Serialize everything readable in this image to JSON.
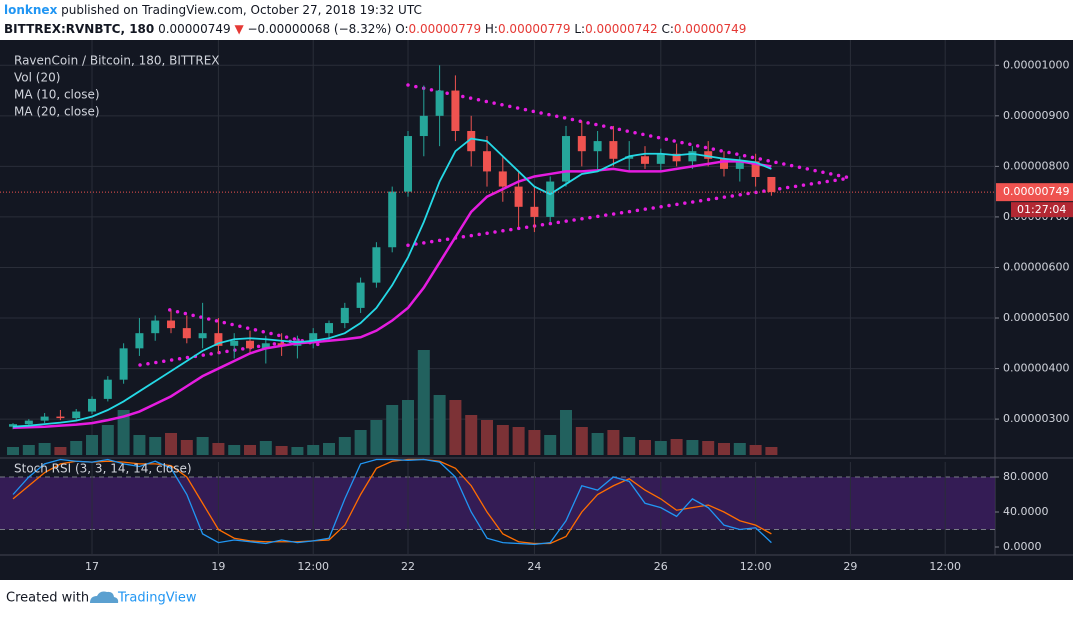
{
  "header": {
    "author": "lonknex",
    "published": " published on TradingView.com, October 27, 2018 19:32 UTC",
    "symbol": "BITTREX:RVNBTC, 180",
    "price": "0.00000749",
    "arrow": "▼",
    "change": "−0.00000068 (−8.32%)",
    "ohlc": [
      {
        "label": "O:",
        "value": "0.00000779"
      },
      {
        "label": "H:",
        "value": "0.00000779"
      },
      {
        "label": "L:",
        "value": "0.00000742"
      },
      {
        "label": "C:",
        "value": "0.00000749"
      }
    ]
  },
  "footer": {
    "created": "Created with",
    "brand": "TradingView"
  },
  "chart_data": {
    "type": "candlestick",
    "title": "RavenCoin / Bitcoin, 180, BITTREX",
    "volume_label": "Vol (20)",
    "ma10_label": "MA (10, close)",
    "ma20_label": "MA (20, close)",
    "stoch_label": "Stoch RSI (3, 3, 14, 14, close)",
    "up_color": "#26a69a",
    "down_color": "#ef5350",
    "volume_up_color": "#22615e",
    "volume_down_color": "#7c3236",
    "ma10_color": "#25d9e6",
    "ma20_color": "#e51ce0",
    "trendline_color": "#e51ce0",
    "grid": true,
    "x": [
      15.75,
      16,
      16.25,
      16.5,
      16.75,
      17,
      17.25,
      17.5,
      17.75,
      18,
      18.25,
      18.5,
      18.75,
      19,
      19.25,
      19.5,
      19.75,
      20,
      20.25,
      20.5,
      20.75,
      21,
      21.25,
      21.5,
      21.75,
      22,
      22.25,
      22.5,
      22.75,
      23,
      23.25,
      23.5,
      23.75,
      24,
      24.25,
      24.5,
      24.75,
      25,
      25.25,
      25.5,
      25.75,
      26,
      26.25,
      26.5,
      26.75,
      27,
      27.25,
      27.5,
      27.75
    ],
    "open": [
      2.85e-06,
      2.9e-06,
      2.97e-06,
      3.05e-06,
      3.02e-06,
      3.15e-06,
      3.4e-06,
      3.78e-06,
      4.4e-06,
      4.7e-06,
      4.95e-06,
      4.8e-06,
      4.6e-06,
      4.7e-06,
      4.45e-06,
      4.55e-06,
      4.4e-06,
      4.5e-06,
      4.45e-06,
      4.55e-06,
      4.7e-06,
      4.9e-06,
      5.2e-06,
      5.7e-06,
      6.4e-06,
      7.5e-06,
      8.6e-06,
      9e-06,
      9.5e-06,
      8.7e-06,
      8.3e-06,
      7.9e-06,
      7.6e-06,
      7.2e-06,
      7e-06,
      7.7e-06,
      8.6e-06,
      8.3e-06,
      8.5e-06,
      8.15e-06,
      8.2e-06,
      8.05e-06,
      8.25e-06,
      8.1e-06,
      8.3e-06,
      8.15e-06,
      7.95e-06,
      8.1e-06,
      7.79e-06
    ],
    "high": [
      2.92e-06,
      3e-06,
      3.12e-06,
      3.18e-06,
      3.2e-06,
      3.45e-06,
      3.85e-06,
      4.5e-06,
      5e-06,
      5.05e-06,
      5.15e-06,
      5.05e-06,
      5.3e-06,
      5e-06,
      4.7e-06,
      4.75e-06,
      4.65e-06,
      4.7e-06,
      4.65e-06,
      4.8e-06,
      4.95e-06,
      5.3e-06,
      5.8e-06,
      6.5e-06,
      7.6e-06,
      8.7e-06,
      9.6e-06,
      1e-05,
      9.8e-06,
      9e-06,
      8.6e-06,
      8.2e-06,
      7.9e-06,
      7.6e-06,
      7.8e-06,
      8.8e-06,
      8.9e-06,
      8.7e-06,
      8.8e-06,
      8.5e-06,
      8.4e-06,
      8.35e-06,
      8.45e-06,
      8.4e-06,
      8.5e-06,
      8.3e-06,
      8.2e-06,
      8.25e-06,
      7.79e-06
    ],
    "low": [
      2.8e-06,
      2.85e-06,
      2.92e-06,
      2.98e-06,
      2.96e-06,
      3.1e-06,
      3.35e-06,
      3.7e-06,
      4.25e-06,
      4.55e-06,
      4.7e-06,
      4.5e-06,
      4.4e-06,
      4.3e-06,
      4.2e-06,
      4.3e-06,
      4.1e-06,
      4.25e-06,
      4.2e-06,
      4.4e-06,
      4.55e-06,
      4.8e-06,
      5.1e-06,
      5.6e-06,
      6.3e-06,
      7.4e-06,
      8.2e-06,
      8.4e-06,
      8.5e-06,
      8e-06,
      7.6e-06,
      7.3e-06,
      6.8e-06,
      6.7e-06,
      6.9e-06,
      7.6e-06,
      8e-06,
      7.9e-06,
      8e-06,
      7.9e-06,
      7.95e-06,
      7.9e-06,
      8e-06,
      7.95e-06,
      8e-06,
      7.8e-06,
      7.7e-06,
      7.6e-06,
      7.42e-06
    ],
    "close": [
      2.9e-06,
      2.97e-06,
      3.05e-06,
      3.02e-06,
      3.15e-06,
      3.4e-06,
      3.78e-06,
      4.4e-06,
      4.7e-06,
      4.95e-06,
      4.8e-06,
      4.6e-06,
      4.7e-06,
      4.45e-06,
      4.55e-06,
      4.4e-06,
      4.5e-06,
      4.45e-06,
      4.55e-06,
      4.7e-06,
      4.9e-06,
      5.2e-06,
      5.7e-06,
      6.4e-06,
      7.5e-06,
      8.6e-06,
      9e-06,
      9.5e-06,
      8.7e-06,
      8.3e-06,
      7.9e-06,
      7.6e-06,
      7.2e-06,
      7e-06,
      7.7e-06,
      8.6e-06,
      8.3e-06,
      8.5e-06,
      8.15e-06,
      8.2e-06,
      8.05e-06,
      8.25e-06,
      8.1e-06,
      8.3e-06,
      8.15e-06,
      7.95e-06,
      8.1e-06,
      7.79e-06,
      7.49e-06
    ],
    "volume": [
      8,
      10,
      12,
      8,
      14,
      20,
      30,
      45,
      20,
      18,
      22,
      15,
      18,
      12,
      10,
      10,
      14,
      9,
      8,
      10,
      12,
      18,
      25,
      35,
      50,
      55,
      105,
      60,
      55,
      40,
      35,
      30,
      28,
      25,
      20,
      45,
      28,
      22,
      25,
      18,
      15,
      14,
      16,
      15,
      14,
      12,
      12,
      10,
      8
    ],
    "ma10": [
      2.85e-06,
      2.87e-06,
      2.9e-06,
      2.93e-06,
      2.97e-06,
      3.05e-06,
      3.18e-06,
      3.35e-06,
      3.55e-06,
      3.75e-06,
      3.95e-06,
      4.15e-06,
      4.35e-06,
      4.5e-06,
      4.58e-06,
      4.6e-06,
      4.58e-06,
      4.55e-06,
      4.52e-06,
      4.55e-06,
      4.6e-06,
      4.7e-06,
      4.9e-06,
      5.2e-06,
      5.65e-06,
      6.2e-06,
      6.9e-06,
      7.7e-06,
      8.3e-06,
      8.55e-06,
      8.5e-06,
      8.2e-06,
      7.9e-06,
      7.6e-06,
      7.45e-06,
      7.65e-06,
      7.85e-06,
      7.9e-06,
      8.05e-06,
      8.2e-06,
      8.25e-06,
      8.25e-06,
      8.22e-06,
      8.25e-06,
      8.2e-06,
      8.15e-06,
      8.12e-06,
      8.08e-06,
      7.95e-06
    ],
    "ma20": [
      2.83e-06,
      2.84e-06,
      2.85e-06,
      2.87e-06,
      2.89e-06,
      2.92e-06,
      2.98e-06,
      3.05e-06,
      3.15e-06,
      3.3e-06,
      3.45e-06,
      3.65e-06,
      3.85e-06,
      4e-06,
      4.15e-06,
      4.3e-06,
      4.4e-06,
      4.45e-06,
      4.5e-06,
      4.52e-06,
      4.55e-06,
      4.58e-06,
      4.62e-06,
      4.75e-06,
      4.95e-06,
      5.2e-06,
      5.6e-06,
      6.1e-06,
      6.6e-06,
      7.1e-06,
      7.4e-06,
      7.55e-06,
      7.7e-06,
      7.8e-06,
      7.85e-06,
      7.9e-06,
      7.9e-06,
      7.92e-06,
      7.95e-06,
      7.9e-06,
      7.9e-06,
      7.9e-06,
      7.95e-06,
      8e-06,
      8.05e-06,
      8.1e-06,
      8.1e-06,
      8.05e-06,
      8e-06
    ],
    "trendlines": [
      {
        "x": [
          22,
          29
        ],
        "values": [
          9.61e-06,
          7.77e-06
        ]
      },
      {
        "x": [
          22,
          29
        ],
        "values": [
          6.44e-06,
          7.77e-06
        ]
      },
      {
        "x": [
          18.23,
          20.6
        ],
        "values": [
          5.16e-06,
          4.47e-06
        ]
      },
      {
        "x": [
          17.76,
          20.3
        ],
        "values": [
          4.07e-06,
          4.57e-06
        ]
      }
    ],
    "last_price": {
      "value": 7.49e-06,
      "label": "0.00000749"
    },
    "countdown": "01:27:04",
    "xlim": [
      15.544,
      31.288
    ],
    "xticks": [
      {
        "value": 17,
        "label": "17"
      },
      {
        "value": 19,
        "label": "19"
      },
      {
        "value": 20.5,
        "label": "12:00"
      },
      {
        "value": 22,
        "label": "22"
      },
      {
        "value": 24,
        "label": "24"
      },
      {
        "value": 26,
        "label": "26"
      },
      {
        "value": 27.5,
        "label": "12:00"
      },
      {
        "value": 29,
        "label": "29"
      },
      {
        "value": 30.5,
        "label": "12:00"
      }
    ],
    "ylim": [
      2.29e-06,
      1.05e-05
    ],
    "yticks": [
      {
        "value": 3e-06,
        "label": "0.00000300"
      },
      {
        "value": 4e-06,
        "label": "0.00000400"
      },
      {
        "value": 5e-06,
        "label": "0.00000500"
      },
      {
        "value": 6e-06,
        "label": "0.00000600"
      },
      {
        "value": 7e-06,
        "label": "0.00000700"
      },
      {
        "value": 8e-06,
        "label": "0.00000800"
      },
      {
        "value": 9e-06,
        "label": "0.00000900"
      },
      {
        "value": 1e-05,
        "label": "0.00001000"
      }
    ],
    "stoch_k": [
      60,
      80,
      95,
      100,
      98,
      97,
      100,
      95,
      92,
      98,
      90,
      60,
      15,
      5,
      8,
      6,
      4,
      8,
      5,
      7,
      10,
      55,
      95,
      100,
      100,
      99,
      100,
      97,
      80,
      40,
      10,
      5,
      4,
      3,
      5,
      30,
      70,
      65,
      80,
      75,
      50,
      45,
      35,
      55,
      45,
      25,
      20,
      22,
      5
    ],
    "stoch_d": [
      55,
      70,
      85,
      95,
      98,
      97,
      98,
      97,
      95,
      95,
      93,
      80,
      50,
      20,
      10,
      7,
      6,
      6,
      6,
      7,
      8,
      25,
      60,
      90,
      98,
      100,
      100,
      98,
      90,
      70,
      40,
      15,
      6,
      4,
      4,
      12,
      40,
      60,
      70,
      78,
      65,
      55,
      42,
      45,
      48,
      40,
      30,
      25,
      15
    ],
    "stoch_k_color": "#2196f3",
    "stoch_d_color": "#ff6d00",
    "stoch_band": [
      20,
      80
    ],
    "stoch_band_color": "#3b1d5e",
    "stoch_ylim": [
      -9.14,
      97.14
    ],
    "stoch_yticks": [
      {
        "value": 0,
        "label": "0.0000"
      },
      {
        "value": 40,
        "label": "40.0000"
      },
      {
        "value": 80,
        "label": "80.0000"
      }
    ]
  }
}
